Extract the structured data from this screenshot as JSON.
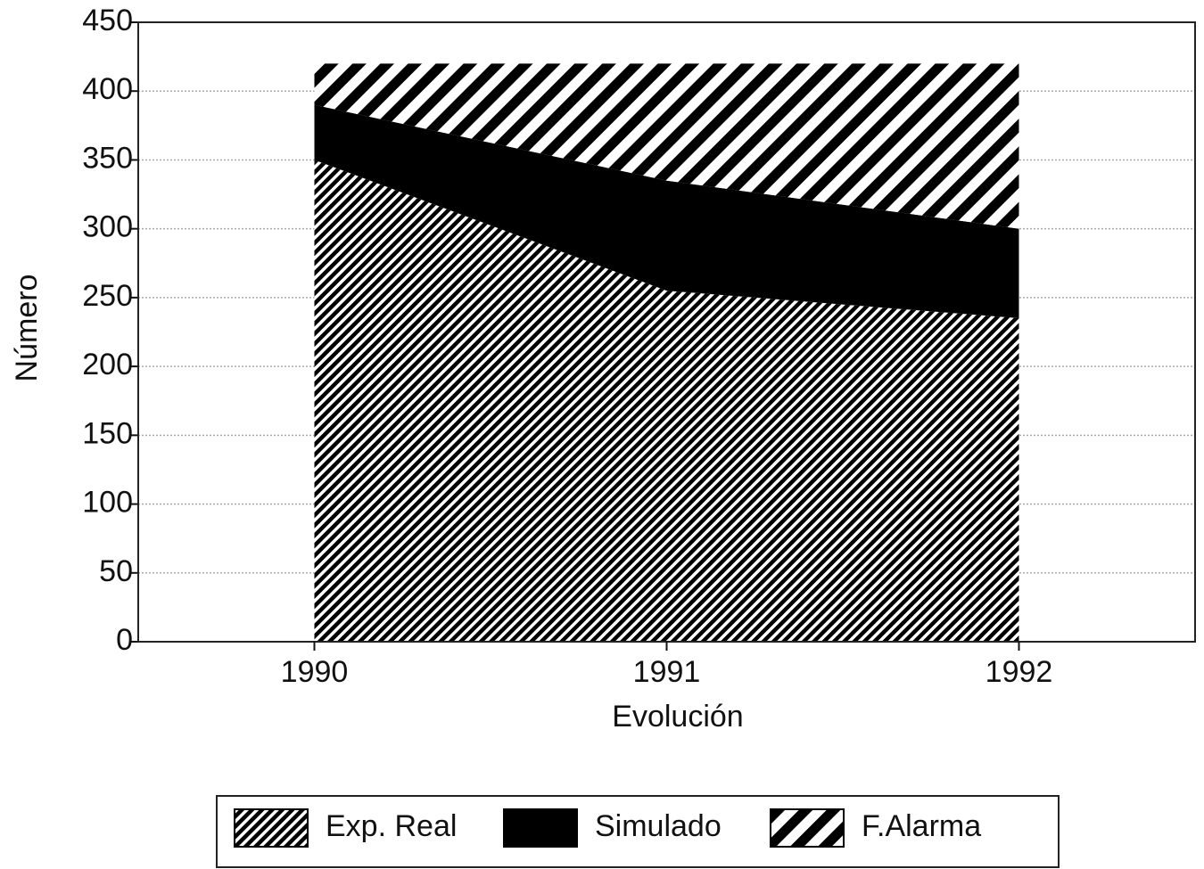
{
  "chart_data": {
    "type": "area",
    "stacked": true,
    "x_label": "Evolución",
    "y_label": "Número",
    "x": [
      1990,
      1991,
      1992
    ],
    "series": [
      {
        "name": "Exp. Real",
        "color": "#000000",
        "pattern": "dense",
        "values": [
          350,
          255,
          235
        ]
      },
      {
        "name": "Simulado",
        "color": "#000000",
        "pattern": "solid",
        "values": [
          40,
          80,
          65
        ]
      },
      {
        "name": "F.Alarma",
        "color": "#000000",
        "pattern": "wide",
        "values": [
          30,
          85,
          120
        ]
      }
    ],
    "xlim": [
      1989.5,
      1992.5
    ],
    "xticks": [
      1990,
      1991,
      1992
    ],
    "ylim": [
      0,
      450
    ],
    "yticks": [
      0,
      50,
      100,
      150,
      200,
      250,
      300,
      350,
      400,
      450
    ],
    "grid": true,
    "legend": "bottom"
  }
}
